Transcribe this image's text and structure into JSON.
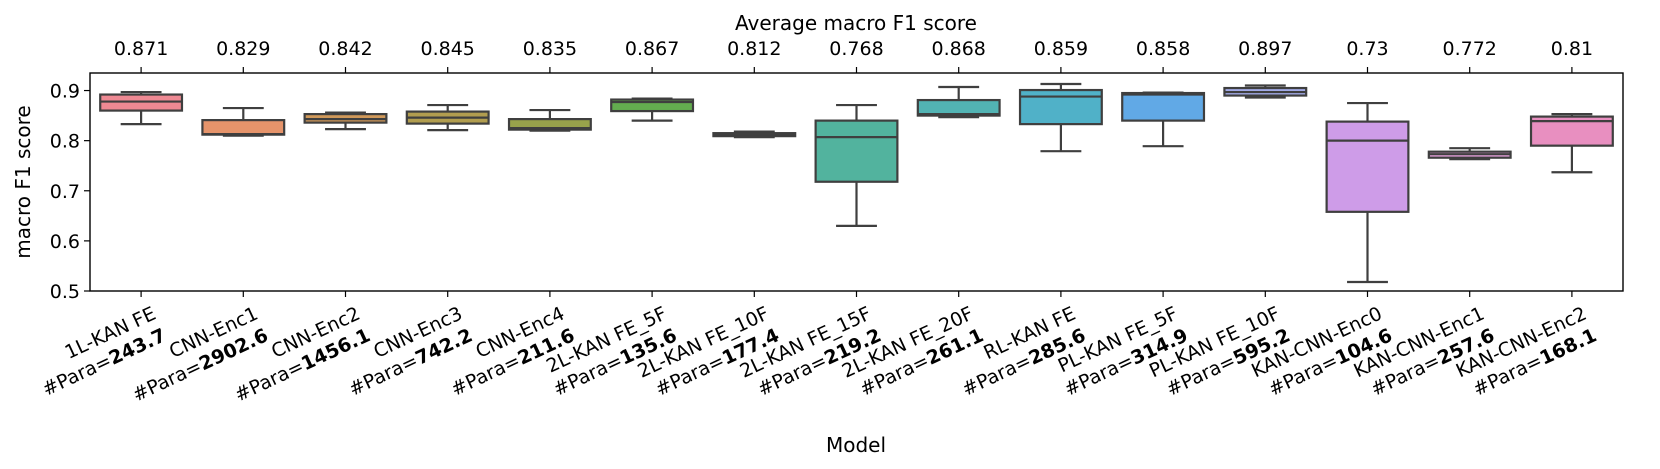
{
  "chart_data": {
    "type": "box",
    "title_top": "Average macro F1 score",
    "xlabel": "Model",
    "ylabel": "macro F1 score",
    "ylim": [
      0.5,
      0.935
    ],
    "yticks": [
      0.5,
      0.6,
      0.7,
      0.8,
      0.9
    ],
    "ytick_labels": [
      "0.5",
      "0.6",
      "0.7",
      "0.8",
      "0.9"
    ],
    "param_prefix": "#Para=",
    "grid": false,
    "categories": [
      {
        "name": "1L-KAN FE",
        "params": "243.7",
        "avg": "0.871",
        "color": "#ee8993",
        "whisker_low": 0.833,
        "q1": 0.86,
        "median": 0.878,
        "q3": 0.892,
        "whisker_high": 0.897
      },
      {
        "name": "CNN-Enc1",
        "params": "2902.6",
        "avg": "0.829",
        "color": "#e6946b",
        "whisker_low": 0.81,
        "q1": 0.812,
        "median": 0.813,
        "q3": 0.841,
        "whisker_high": 0.865
      },
      {
        "name": "CNN-Enc2",
        "params": "1456.1",
        "avg": "0.842",
        "color": "#d0995a",
        "whisker_low": 0.823,
        "q1": 0.836,
        "median": 0.843,
        "q3": 0.853,
        "whisker_high": 0.856
      },
      {
        "name": "CNN-Enc3",
        "params": "742.2",
        "avg": "0.845",
        "color": "#b19d4f",
        "whisker_low": 0.821,
        "q1": 0.834,
        "median": 0.846,
        "q3": 0.858,
        "whisker_high": 0.871
      },
      {
        "name": "CNN-Enc4",
        "params": "211.6",
        "avg": "0.835",
        "color": "#98a24b",
        "whisker_low": 0.82,
        "q1": 0.822,
        "median": 0.825,
        "q3": 0.843,
        "whisker_high": 0.861
      },
      {
        "name": "2L-KAN FE_5F",
        "params": "135.6",
        "avg": "0.867",
        "color": "#63ad4f",
        "whisker_low": 0.84,
        "q1": 0.859,
        "median": 0.877,
        "q3": 0.882,
        "whisker_high": 0.884
      },
      {
        "name": "2L-KAN FE_10F",
        "params": "177.4",
        "avg": "0.812",
        "color": "#58b37f",
        "whisker_low": 0.807,
        "q1": 0.809,
        "median": 0.812,
        "q3": 0.815,
        "whisker_high": 0.818
      },
      {
        "name": "2L-KAN FE_15F",
        "params": "219.2",
        "avg": "0.768",
        "color": "#52b39e",
        "whisker_low": 0.63,
        "q1": 0.718,
        "median": 0.807,
        "q3": 0.84,
        "whisker_high": 0.871
      },
      {
        "name": "2L-KAN FE_20F",
        "params": "261.1",
        "avg": "0.868",
        "color": "#52b3b3",
        "whisker_low": 0.847,
        "q1": 0.85,
        "median": 0.853,
        "q3": 0.881,
        "whisker_high": 0.907
      },
      {
        "name": "RL-KAN FE",
        "params": "285.6",
        "avg": "0.859",
        "color": "#50b1c8",
        "whisker_low": 0.779,
        "q1": 0.833,
        "median": 0.888,
        "q3": 0.901,
        "whisker_high": 0.913
      },
      {
        "name": "PL-KAN FE_5F",
        "params": "314.9",
        "avg": "0.858",
        "color": "#61a9e6",
        "whisker_low": 0.789,
        "q1": 0.84,
        "median": 0.892,
        "q3": 0.895,
        "whisker_high": 0.896
      },
      {
        "name": "PL-KAN FE_10F",
        "params": "595.2",
        "avg": "0.897",
        "color": "#a3abe8",
        "whisker_low": 0.886,
        "q1": 0.89,
        "median": 0.897,
        "q3": 0.905,
        "whisker_high": 0.91
      },
      {
        "name": "KAN-CNN-Enc0",
        "params": "104.6",
        "avg": "0.73",
        "color": "#ce9ce8",
        "whisker_low": 0.518,
        "q1": 0.658,
        "median": 0.8,
        "q3": 0.838,
        "whisker_high": 0.875
      },
      {
        "name": "KAN-CNN-Enc1",
        "params": "257.6",
        "avg": "0.772",
        "color": "#e6a0dc",
        "whisker_low": 0.763,
        "q1": 0.766,
        "median": 0.773,
        "q3": 0.778,
        "whisker_high": 0.785
      },
      {
        "name": "KAN-CNN-Enc2",
        "params": "168.1",
        "avg": "0.81",
        "color": "#e88fc0",
        "whisker_low": 0.737,
        "q1": 0.79,
        "median": 0.839,
        "q3": 0.848,
        "whisker_high": 0.853
      }
    ]
  }
}
